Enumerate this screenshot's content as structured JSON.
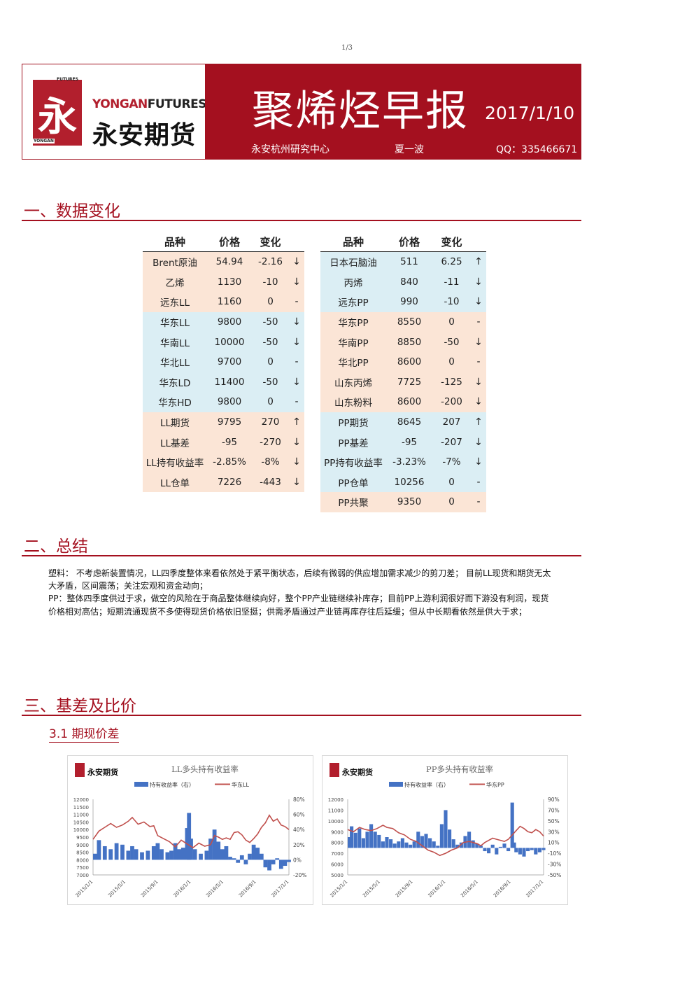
{
  "page_number": "1/3",
  "header": {
    "logo": {
      "tag_top": "FUTURES",
      "tag_bottom": "YONGAN",
      "glyph": "永",
      "en_yongan": "YONGAN",
      "en_futures": "FUTURES",
      "cn": "永安期货"
    },
    "title": "聚烯烃早报",
    "date": "2017/1/10",
    "center": "永安杭州研究中心",
    "author": "夏一波",
    "qq": "QQ：335466671"
  },
  "sections": {
    "s1": "一、数据变化",
    "s2": "二、总结",
    "s3": "三、基差及比价",
    "s3_1": "3.1 期现价差"
  },
  "table_headers": {
    "name": "品种",
    "price": "价格",
    "change": "变化"
  },
  "left_table": [
    {
      "name": "Brent原油",
      "price": "54.94",
      "change": "-2.16",
      "arrow": "↓",
      "bg": "o"
    },
    {
      "name": "乙烯",
      "price": "1130",
      "change": "-10",
      "arrow": "↓",
      "bg": "o"
    },
    {
      "name": "远东LL",
      "price": "1160",
      "change": "0",
      "arrow": "-",
      "bg": "o"
    },
    {
      "name": "华东LL",
      "price": "9800",
      "change": "-50",
      "arrow": "↓",
      "bg": "b"
    },
    {
      "name": "华南LL",
      "price": "10000",
      "change": "-50",
      "arrow": "↓",
      "bg": "b"
    },
    {
      "name": "华北LL",
      "price": "9700",
      "change": "0",
      "arrow": "-",
      "bg": "b"
    },
    {
      "name": "华东LD",
      "price": "11400",
      "change": "-50",
      "arrow": "↓",
      "bg": "b"
    },
    {
      "name": "华东HD",
      "price": "9800",
      "change": "0",
      "arrow": "-",
      "bg": "b"
    },
    {
      "name": "LL期货",
      "price": "9795",
      "change": "270",
      "arrow": "↑",
      "bg": "o"
    },
    {
      "name": "LL基差",
      "price": "-95",
      "change": "-270",
      "arrow": "↓",
      "bg": "o"
    },
    {
      "name": "LL持有收益率",
      "price": "-2.85%",
      "change": "-8%",
      "arrow": "↓",
      "bg": "o"
    },
    {
      "name": "LL仓单",
      "price": "7226",
      "change": "-443",
      "arrow": "↓",
      "bg": "o"
    }
  ],
  "right_table": [
    {
      "name": "日本石脑油",
      "price": "511",
      "change": "6.25",
      "arrow": "↑",
      "bg": "b"
    },
    {
      "name": "丙烯",
      "price": "840",
      "change": "-11",
      "arrow": "↓",
      "bg": "b"
    },
    {
      "name": "远东PP",
      "price": "990",
      "change": "-10",
      "arrow": "↓",
      "bg": "b"
    },
    {
      "name": "华东PP",
      "price": "8550",
      "change": "0",
      "arrow": "-",
      "bg": "o"
    },
    {
      "name": "华南PP",
      "price": "8850",
      "change": "-50",
      "arrow": "↓",
      "bg": "o"
    },
    {
      "name": "华北PP",
      "price": "8600",
      "change": "0",
      "arrow": "-",
      "bg": "o"
    },
    {
      "name": "山东丙烯",
      "price": "7725",
      "change": "-125",
      "arrow": "↓",
      "bg": "o"
    },
    {
      "name": "山东粉料",
      "price": "8600",
      "change": "-200",
      "arrow": "↓",
      "bg": "o"
    },
    {
      "name": "PP期货",
      "price": "8645",
      "change": "207",
      "arrow": "↑",
      "bg": "b"
    },
    {
      "name": "PP基差",
      "price": "-95",
      "change": "-207",
      "arrow": "↓",
      "bg": "b"
    },
    {
      "name": "PP持有收益率",
      "price": "-3.23%",
      "change": "-7%",
      "arrow": "↓",
      "bg": "b"
    },
    {
      "name": "PP仓单",
      "price": "10256",
      "change": "0",
      "arrow": "-",
      "bg": "b"
    },
    {
      "name": "PP共聚",
      "price": "9350",
      "change": "0",
      "arrow": "-",
      "bg": "o"
    }
  ],
  "summary": [
    "塑料： 不考虑新装置情况，LL四季度整体来看依然处于紧平衡状态，后续有微弱的供应增加需求减少的剪刀差；     目前LL现货和期货无太大矛盾，区间震荡；关注宏观和资金动向；",
    "PP：整体四季度供过于求，做空的风险在于商品整体继续向好，整个PP产业链继续补库存；目前PP上游利润很好而下游没有利润，现货价格相对高估；短期流通现货不多使得现货价格依旧坚挺；供需矛盾通过产业链再库存往后延缓；但从中长期看依然是供大于求；"
  ],
  "chart_data": [
    {
      "type": "bar+line",
      "title": "LL多头持有收益率",
      "logo_text": "永安期货",
      "legend": [
        "持有收益率（右）",
        "华东LL"
      ],
      "legend_position": "top",
      "colors": {
        "bar": "#4472c4",
        "line": "#c0504d"
      },
      "x_ticks": [
        "2015/1/1",
        "2015/5/1",
        "2015/9/1",
        "2016/1/1",
        "2016/5/1",
        "2016/9/1",
        "2017/1/1"
      ],
      "y_left_ticks": [
        "12000",
        "11500",
        "11000",
        "10500",
        "10000",
        "9500",
        "9000",
        "8500",
        "8000",
        "7500",
        "7000"
      ],
      "y_left_range": [
        7000,
        12000
      ],
      "y_right_ticks": [
        "80%",
        "60%",
        "40%",
        "20%",
        "0%",
        "-20%"
      ],
      "y_right_range": [
        -20,
        80
      ],
      "line_points": [
        [
          0,
          9350
        ],
        [
          0.03,
          9900
        ],
        [
          0.06,
          10150
        ],
        [
          0.09,
          10400
        ],
        [
          0.12,
          10150
        ],
        [
          0.15,
          10300
        ],
        [
          0.18,
          10550
        ],
        [
          0.2,
          10800
        ],
        [
          0.23,
          10350
        ],
        [
          0.26,
          10500
        ],
        [
          0.29,
          10200
        ],
        [
          0.31,
          10250
        ],
        [
          0.33,
          9600
        ],
        [
          0.36,
          9400
        ],
        [
          0.39,
          9200
        ],
        [
          0.42,
          8850
        ],
        [
          0.45,
          9300
        ],
        [
          0.48,
          9050
        ],
        [
          0.51,
          8800
        ],
        [
          0.54,
          9100
        ],
        [
          0.57,
          8900
        ],
        [
          0.6,
          9000
        ],
        [
          0.62,
          9600
        ],
        [
          0.64,
          9500
        ],
        [
          0.66,
          9350
        ],
        [
          0.68,
          9450
        ],
        [
          0.7,
          9350
        ],
        [
          0.72,
          9800
        ],
        [
          0.74,
          9850
        ],
        [
          0.76,
          9650
        ],
        [
          0.78,
          9300
        ],
        [
          0.8,
          9150
        ],
        [
          0.82,
          9400
        ],
        [
          0.84,
          9700
        ],
        [
          0.86,
          10150
        ],
        [
          0.88,
          10450
        ],
        [
          0.9,
          10950
        ],
        [
          0.92,
          10550
        ],
        [
          0.94,
          10700
        ],
        [
          0.96,
          10300
        ],
        [
          0.98,
          10200
        ],
        [
          1,
          10000
        ]
      ],
      "bar_points": [
        [
          0,
          8
        ],
        [
          0.03,
          26
        ],
        [
          0.06,
          18
        ],
        [
          0.09,
          14
        ],
        [
          0.12,
          22
        ],
        [
          0.15,
          20
        ],
        [
          0.18,
          12
        ],
        [
          0.2,
          18
        ],
        [
          0.22,
          14
        ],
        [
          0.25,
          10
        ],
        [
          0.28,
          12
        ],
        [
          0.31,
          18
        ],
        [
          0.33,
          22
        ],
        [
          0.35,
          14
        ],
        [
          0.38,
          10
        ],
        [
          0.4,
          12
        ],
        [
          0.42,
          22
        ],
        [
          0.44,
          14
        ],
        [
          0.46,
          16
        ],
        [
          0.48,
          42
        ],
        [
          0.49,
          62
        ],
        [
          0.5,
          28
        ],
        [
          0.52,
          14
        ],
        [
          0.55,
          8
        ],
        [
          0.58,
          12
        ],
        [
          0.6,
          28
        ],
        [
          0.62,
          40
        ],
        [
          0.64,
          24
        ],
        [
          0.66,
          14
        ],
        [
          0.68,
          18
        ],
        [
          0.7,
          4
        ],
        [
          0.72,
          2
        ],
        [
          0.74,
          -4
        ],
        [
          0.76,
          6
        ],
        [
          0.78,
          -6
        ],
        [
          0.8,
          8
        ],
        [
          0.82,
          20
        ],
        [
          0.84,
          16
        ],
        [
          0.86,
          8
        ],
        [
          0.88,
          -10
        ],
        [
          0.9,
          -14
        ],
        [
          0.92,
          -6
        ],
        [
          0.94,
          2
        ],
        [
          0.96,
          -12
        ],
        [
          0.98,
          -8
        ],
        [
          1,
          -3
        ]
      ]
    },
    {
      "type": "bar+line",
      "title": "PP多头持有收益率",
      "logo_text": "永安期货",
      "legend": [
        "持有收益率（右）",
        "华东PP"
      ],
      "legend_position": "top",
      "colors": {
        "bar": "#4472c4",
        "line": "#c0504d"
      },
      "x_ticks": [
        "2015/1/1",
        "2015/5/1",
        "2015/9/1",
        "2016/1/1",
        "2016/5/1",
        "2016/9/1",
        "2017/1/1"
      ],
      "y_left_ticks": [
        "12000",
        "11000",
        "10000",
        "9000",
        "8000",
        "7000",
        "6000",
        "5000"
      ],
      "y_left_range": [
        5000,
        12000
      ],
      "y_right_ticks": [
        "90%",
        "70%",
        "50%",
        "30%",
        "10%",
        "-10%",
        "-30%",
        "-50%"
      ],
      "y_right_range": [
        -50,
        90
      ],
      "line_points": [
        [
          0,
          9200
        ],
        [
          0.03,
          9000
        ],
        [
          0.06,
          9400
        ],
        [
          0.09,
          9200
        ],
        [
          0.12,
          9100
        ],
        [
          0.15,
          9300
        ],
        [
          0.18,
          9600
        ],
        [
          0.2,
          9400
        ],
        [
          0.23,
          9300
        ],
        [
          0.26,
          8900
        ],
        [
          0.29,
          8700
        ],
        [
          0.32,
          8300
        ],
        [
          0.35,
          8100
        ],
        [
          0.38,
          7700
        ],
        [
          0.41,
          7300
        ],
        [
          0.44,
          7100
        ],
        [
          0.47,
          6800
        ],
        [
          0.5,
          7000
        ],
        [
          0.53,
          7300
        ],
        [
          0.56,
          7500
        ],
        [
          0.59,
          8000
        ],
        [
          0.62,
          8100
        ],
        [
          0.64,
          8000
        ],
        [
          0.66,
          7900
        ],
        [
          0.68,
          7700
        ],
        [
          0.7,
          8000
        ],
        [
          0.72,
          8200
        ],
        [
          0.74,
          8400
        ],
        [
          0.76,
          8300
        ],
        [
          0.78,
          8200
        ],
        [
          0.8,
          8100
        ],
        [
          0.82,
          8300
        ],
        [
          0.84,
          8700
        ],
        [
          0.86,
          9100
        ],
        [
          0.88,
          9500
        ],
        [
          0.9,
          9300
        ],
        [
          0.92,
          9000
        ],
        [
          0.94,
          8900
        ],
        [
          0.96,
          9200
        ],
        [
          0.98,
          9000
        ],
        [
          1,
          8600
        ]
      ],
      "bar_points": [
        [
          0,
          20
        ],
        [
          0.02,
          40
        ],
        [
          0.04,
          28
        ],
        [
          0.06,
          36
        ],
        [
          0.08,
          18
        ],
        [
          0.1,
          30
        ],
        [
          0.12,
          44
        ],
        [
          0.14,
          30
        ],
        [
          0.16,
          24
        ],
        [
          0.18,
          12
        ],
        [
          0.2,
          20
        ],
        [
          0.22,
          16
        ],
        [
          0.24,
          8
        ],
        [
          0.26,
          12
        ],
        [
          0.28,
          18
        ],
        [
          0.3,
          10
        ],
        [
          0.32,
          6
        ],
        [
          0.34,
          12
        ],
        [
          0.36,
          30
        ],
        [
          0.38,
          22
        ],
        [
          0.4,
          26
        ],
        [
          0.42,
          18
        ],
        [
          0.44,
          12
        ],
        [
          0.46,
          4
        ],
        [
          0.48,
          44
        ],
        [
          0.5,
          70
        ],
        [
          0.52,
          34
        ],
        [
          0.54,
          16
        ],
        [
          0.56,
          6
        ],
        [
          0.58,
          10
        ],
        [
          0.6,
          22
        ],
        [
          0.62,
          30
        ],
        [
          0.64,
          14
        ],
        [
          0.66,
          8
        ],
        [
          0.68,
          4
        ],
        [
          0.7,
          -6
        ],
        [
          0.72,
          -10
        ],
        [
          0.74,
          6
        ],
        [
          0.76,
          -12
        ],
        [
          0.78,
          2
        ],
        [
          0.8,
          8
        ],
        [
          0.82,
          -6
        ],
        [
          0.84,
          84
        ],
        [
          0.85,
          10
        ],
        [
          0.86,
          -8
        ],
        [
          0.88,
          -12
        ],
        [
          0.9,
          -16
        ],
        [
          0.92,
          -6
        ],
        [
          0.94,
          -4
        ],
        [
          0.96,
          -12
        ],
        [
          0.98,
          -8
        ],
        [
          1,
          -4
        ]
      ]
    }
  ]
}
